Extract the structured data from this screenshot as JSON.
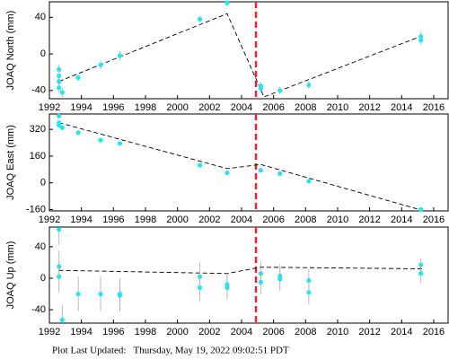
{
  "chart_data": [
    {
      "type": "scatter",
      "ylabel": "JOAQ North (mm)",
      "x": [
        1992.6,
        1992.6,
        1992.6,
        1992.6,
        1992.8,
        1993.8,
        1995.2,
        1996.4,
        2001.4,
        2003.1,
        2005.2,
        2005.2,
        2006.4,
        2008.2,
        2015.2,
        2015.2
      ],
      "values": [
        -17,
        -24,
        -30,
        -37,
        -42,
        -26,
        -12,
        -2,
        38,
        56,
        -35,
        -38,
        -40,
        -34,
        19,
        15
      ],
      "errors": [
        5,
        5,
        5,
        5,
        5,
        4,
        5,
        5,
        4,
        4,
        4,
        4,
        4,
        4,
        5,
        5
      ],
      "color": "#22e5f0",
      "model": {
        "x": [
          1992.6,
          2003.1,
          2005.4,
          2015.3
        ],
        "values": [
          -30,
          44,
          -47,
          20
        ],
        "color": "#000000"
      },
      "vline": {
        "x": 2004.9,
        "color": "#e8262b"
      },
      "xlim": [
        1992,
        2016.9
      ],
      "xticks": [
        1992,
        1994,
        1996,
        1998,
        2000,
        2002,
        2004,
        2006,
        2008,
        2010,
        2012,
        2014,
        2016
      ],
      "ylim": [
        -49,
        57
      ],
      "yticks": [
        -40,
        0,
        40
      ]
    },
    {
      "type": "scatter",
      "ylabel": "JOAQ East (mm)",
      "x": [
        1992.6,
        1992.6,
        1992.6,
        1992.8,
        1993.8,
        1995.2,
        1996.4,
        2001.4,
        2003.1,
        2005.2,
        2006.4,
        2008.2,
        2015.2
      ],
      "values": [
        400,
        360,
        345,
        330,
        300,
        255,
        235,
        105,
        60,
        75,
        55,
        10,
        -160
      ],
      "errors": [
        10,
        10,
        10,
        10,
        10,
        10,
        10,
        10,
        8,
        8,
        8,
        8,
        10
      ],
      "color": "#22e5f0",
      "model": {
        "x": [
          1992.6,
          2003.1,
          2005.2,
          2015.3
        ],
        "values": [
          360,
          85,
          110,
          -165
        ],
        "color": "#000000"
      },
      "vline": {
        "x": 2004.9,
        "color": "#e8262b"
      },
      "xlim": [
        1992,
        2016.9
      ],
      "xticks": [
        1992,
        1994,
        1996,
        1998,
        2000,
        2002,
        2004,
        2006,
        2008,
        2010,
        2012,
        2014,
        2016
      ],
      "ylim": [
        -168,
        412
      ],
      "yticks": [
        -160,
        0,
        160,
        320
      ]
    },
    {
      "type": "scatter",
      "ylabel": "JOAQ Up (mm)",
      "x": [
        1992.6,
        1992.6,
        1992.6,
        1992.8,
        1993.8,
        1995.2,
        1996.4,
        1996.4,
        2001.4,
        2001.4,
        2003.1,
        2003.1,
        2005.2,
        2005.2,
        2006.4,
        2006.4,
        2008.2,
        2008.2,
        2015.2,
        2015.2
      ],
      "values": [
        62,
        15,
        2,
        -53,
        -20,
        -20,
        -22,
        -20,
        2,
        -12,
        -8,
        -12,
        6,
        -5,
        3,
        -1,
        -3,
        -18,
        17,
        6
      ],
      "errors": [
        20,
        20,
        20,
        20,
        22,
        22,
        20,
        20,
        18,
        18,
        15,
        15,
        15,
        15,
        15,
        15,
        15,
        15,
        8,
        12
      ],
      "color": "#22e5f0",
      "model": {
        "x": [
          1992.6,
          2003.1,
          2005.2,
          2015.3
        ],
        "values": [
          10,
          6,
          14,
          12
        ],
        "color": "#000000"
      },
      "vline": {
        "x": 2004.9,
        "color": "#e8262b"
      },
      "xlim": [
        1992,
        2016.9
      ],
      "xticks": [
        1992,
        1994,
        1996,
        1998,
        2000,
        2002,
        2004,
        2006,
        2008,
        2010,
        2012,
        2014,
        2016
      ],
      "ylim": [
        -57,
        65
      ],
      "yticks": [
        -40,
        0,
        40
      ]
    }
  ],
  "footer": "Plot Last Updated:   Thursday, May 19, 2022 09:02:51 PDT"
}
